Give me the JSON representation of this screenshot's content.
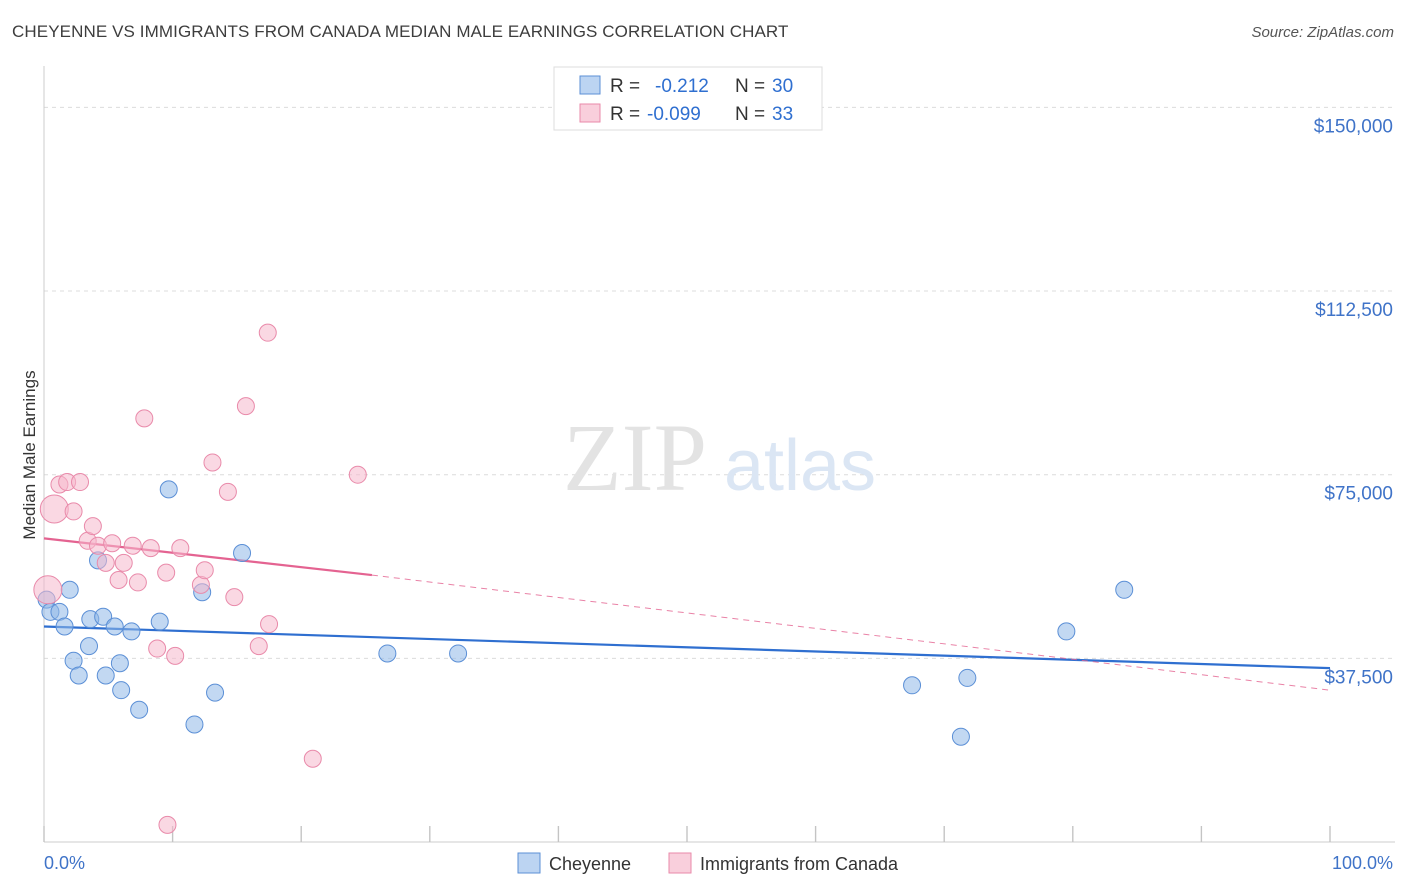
{
  "header": {
    "title": "CHEYENNE VS IMMIGRANTS FROM CANADA MEDIAN MALE EARNINGS CORRELATION CHART",
    "source": "Source: ZipAtlas.com"
  },
  "watermark": {
    "zip": "ZIP",
    "atlas": "atlas"
  },
  "chart_data": {
    "type": "scatter",
    "title": "CHEYENNE VS IMMIGRANTS FROM CANADA MEDIAN MALE EARNINGS CORRELATION CHART",
    "xlabel": "",
    "ylabel": "Median Male Earnings",
    "xlim": [
      0,
      100
    ],
    "ylim": [
      0,
      156000
    ],
    "x_tick_labels": [
      "0.0%",
      "100.0%"
    ],
    "y_ticks": [
      37500,
      75000,
      112500,
      150000
    ],
    "y_tick_labels": [
      "$37,500",
      "$75,000",
      "$112,500",
      "$150,000"
    ],
    "grid": true,
    "legend": {
      "position": "top-center",
      "rows": [
        {
          "r_label": "R =",
          "r_value": "-0.212",
          "n_label": "N =",
          "n_value": "30"
        },
        {
          "r_label": "R =",
          "r_value": "-0.099",
          "n_label": "N =",
          "n_value": "33"
        }
      ]
    },
    "series": [
      {
        "name": "Cheyenne",
        "color": "#8fb8e8",
        "edge": "#5b8fd6",
        "line_color": "#2f6fd0",
        "trend": {
          "x": [
            0,
            100
          ],
          "y": [
            44000,
            35500
          ]
        },
        "points": [
          [
            0.2,
            49500
          ],
          [
            0.5,
            47000
          ],
          [
            1.2,
            47000
          ],
          [
            1.6,
            44000
          ],
          [
            2.0,
            51500
          ],
          [
            2.3,
            37000
          ],
          [
            2.7,
            34000
          ],
          [
            3.5,
            40000
          ],
          [
            3.6,
            45500
          ],
          [
            4.2,
            57500
          ],
          [
            4.6,
            46000
          ],
          [
            4.8,
            34000
          ],
          [
            5.5,
            44000
          ],
          [
            5.9,
            36500
          ],
          [
            6.0,
            31000
          ],
          [
            6.8,
            43000
          ],
          [
            7.4,
            27000
          ],
          [
            9.0,
            45000
          ],
          [
            9.7,
            72000
          ],
          [
            11.7,
            24000
          ],
          [
            12.3,
            51000
          ],
          [
            13.3,
            30500
          ],
          [
            15.4,
            59000
          ],
          [
            26.7,
            38500
          ],
          [
            32.2,
            38500
          ],
          [
            67.5,
            32000
          ],
          [
            71.3,
            21500
          ],
          [
            71.8,
            33500
          ],
          [
            79.5,
            43000
          ],
          [
            84.0,
            51500
          ]
        ]
      },
      {
        "name": "Immigrants from Canada",
        "color": "#f5b8cc",
        "edge": "#e98aaa",
        "line_color": "#e46391",
        "trend": {
          "x": [
            0,
            25.5
          ],
          "y": [
            62000,
            54500
          ]
        },
        "trend_ext": {
          "x": [
            25.5,
            100
          ],
          "y": [
            54500,
            31000
          ]
        },
        "points": [
          [
            0.3,
            51500
          ],
          [
            0.8,
            68000
          ],
          [
            1.2,
            73000
          ],
          [
            1.8,
            73500
          ],
          [
            2.3,
            67500
          ],
          [
            2.8,
            73500
          ],
          [
            3.4,
            61500
          ],
          [
            3.8,
            64500
          ],
          [
            4.2,
            60500
          ],
          [
            4.8,
            57000
          ],
          [
            5.3,
            61000
          ],
          [
            5.8,
            53500
          ],
          [
            6.2,
            57000
          ],
          [
            6.9,
            60500
          ],
          [
            7.3,
            53000
          ],
          [
            7.8,
            86500
          ],
          [
            8.3,
            60000
          ],
          [
            8.8,
            39500
          ],
          [
            9.5,
            55000
          ],
          [
            9.6,
            3500
          ],
          [
            10.2,
            38000
          ],
          [
            10.6,
            60000
          ],
          [
            12.2,
            52500
          ],
          [
            12.5,
            55500
          ],
          [
            13.1,
            77500
          ],
          [
            14.3,
            71500
          ],
          [
            14.8,
            50000
          ],
          [
            15.7,
            89000
          ],
          [
            16.7,
            40000
          ],
          [
            17.4,
            104000
          ],
          [
            17.5,
            44500
          ],
          [
            20.9,
            17000
          ],
          [
            24.4,
            75000
          ]
        ]
      }
    ]
  }
}
